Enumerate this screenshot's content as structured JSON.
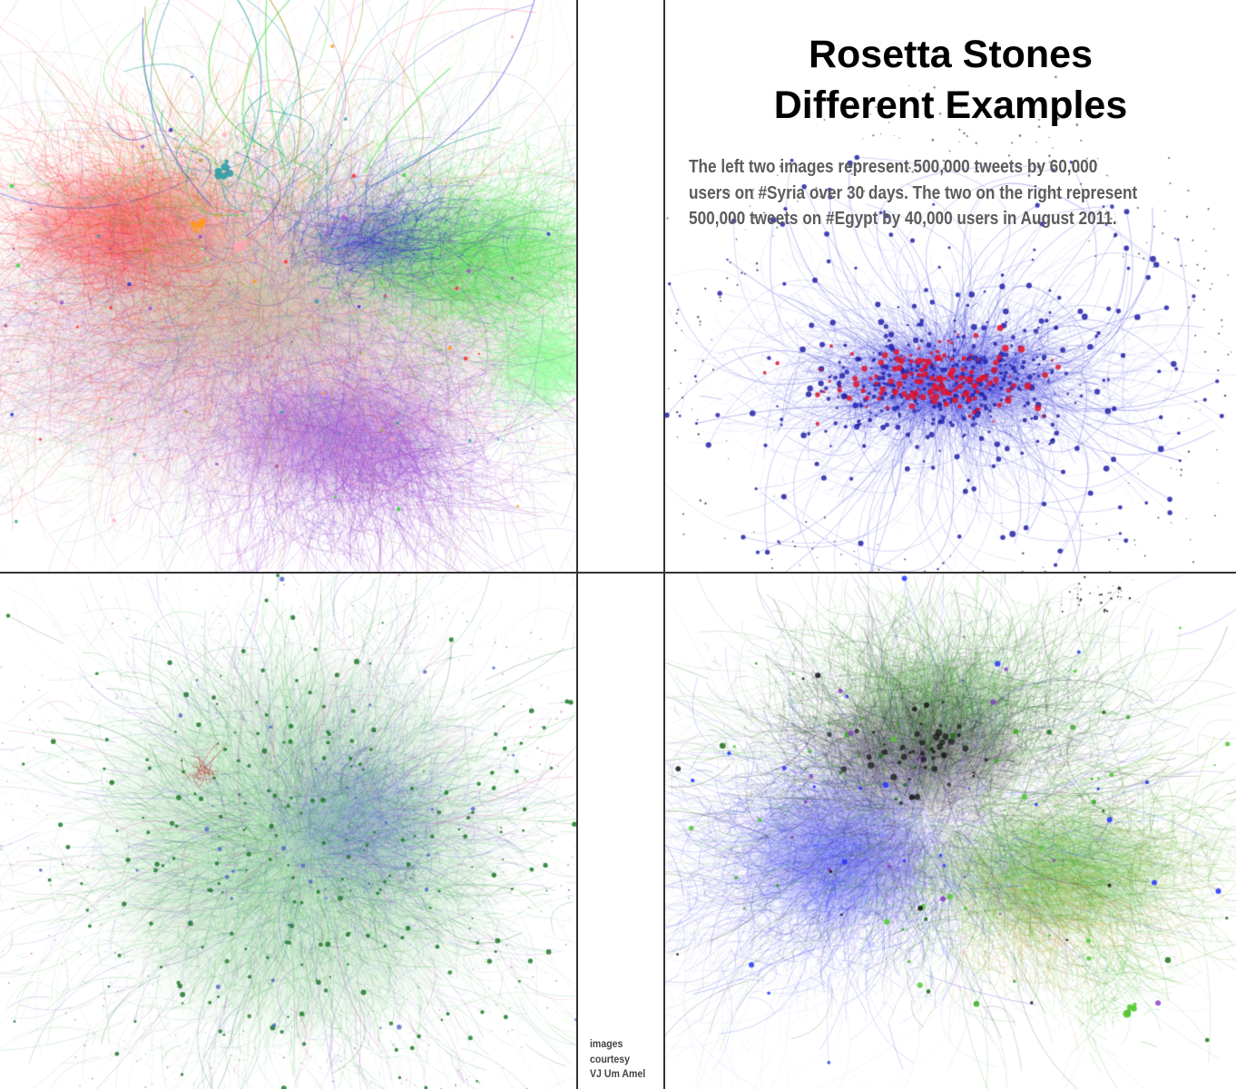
{
  "title": {
    "line1": "Rosetta Stones",
    "line2": "Different Examples"
  },
  "description": {
    "lines": [
      "The left two images represent 500,000 tweets by 60,000",
      "users on #Syria over 30 days. The two on the right represent",
      "500,000 tweets on #Egypt by 40,000 users in August 2011."
    ]
  },
  "credit": {
    "lines": [
      "images",
      "courtesy",
      "VJ Um Amel"
    ]
  },
  "theme": {
    "background": "#ffffff",
    "divider": "#333333",
    "title": "#000000",
    "description": "#5c5c5c",
    "credit": "#444444"
  },
  "networks": {
    "top_left": {
      "palette": {
        "red": "#ff2424",
        "green": "#2fd42f",
        "blue": "#2424c8",
        "purple": "#9a4ad0",
        "light_green": "#8cff96",
        "pink": "#ffa6b6",
        "olive": "#a6a03a",
        "magenta": "#b04e8e",
        "teal": "#2f9fa6",
        "orange": "#ff9a1e"
      }
    },
    "top_right": {
      "palette": {
        "edge": "#3434d8",
        "node": "#2222a8",
        "core": "#e0142c",
        "scatter": "#3a3a55"
      }
    },
    "bottom_left": {
      "palette": {
        "green": "#3fb04a",
        "light_green": "#7ad47a",
        "dark_green": "#1f7a2a",
        "blue": "#4a64c8",
        "purple": "#8a4ac0",
        "magenta": "#d040b0",
        "red": "#c02020",
        "scatter": "#8aa0b8"
      }
    },
    "bottom_right": {
      "palette": {
        "blue": "#2434ff",
        "deep_blue": "#1a20c0",
        "black": "#121212",
        "dark_purple": "#2a0e3a",
        "purple": "#8a44c8",
        "green": "#3aa824",
        "bright_green": "#54c832",
        "dark_green": "#1c6e18",
        "olive": "#8aa012",
        "lavender": "#8a8ae6",
        "orange": "#e08a20"
      }
    }
  }
}
